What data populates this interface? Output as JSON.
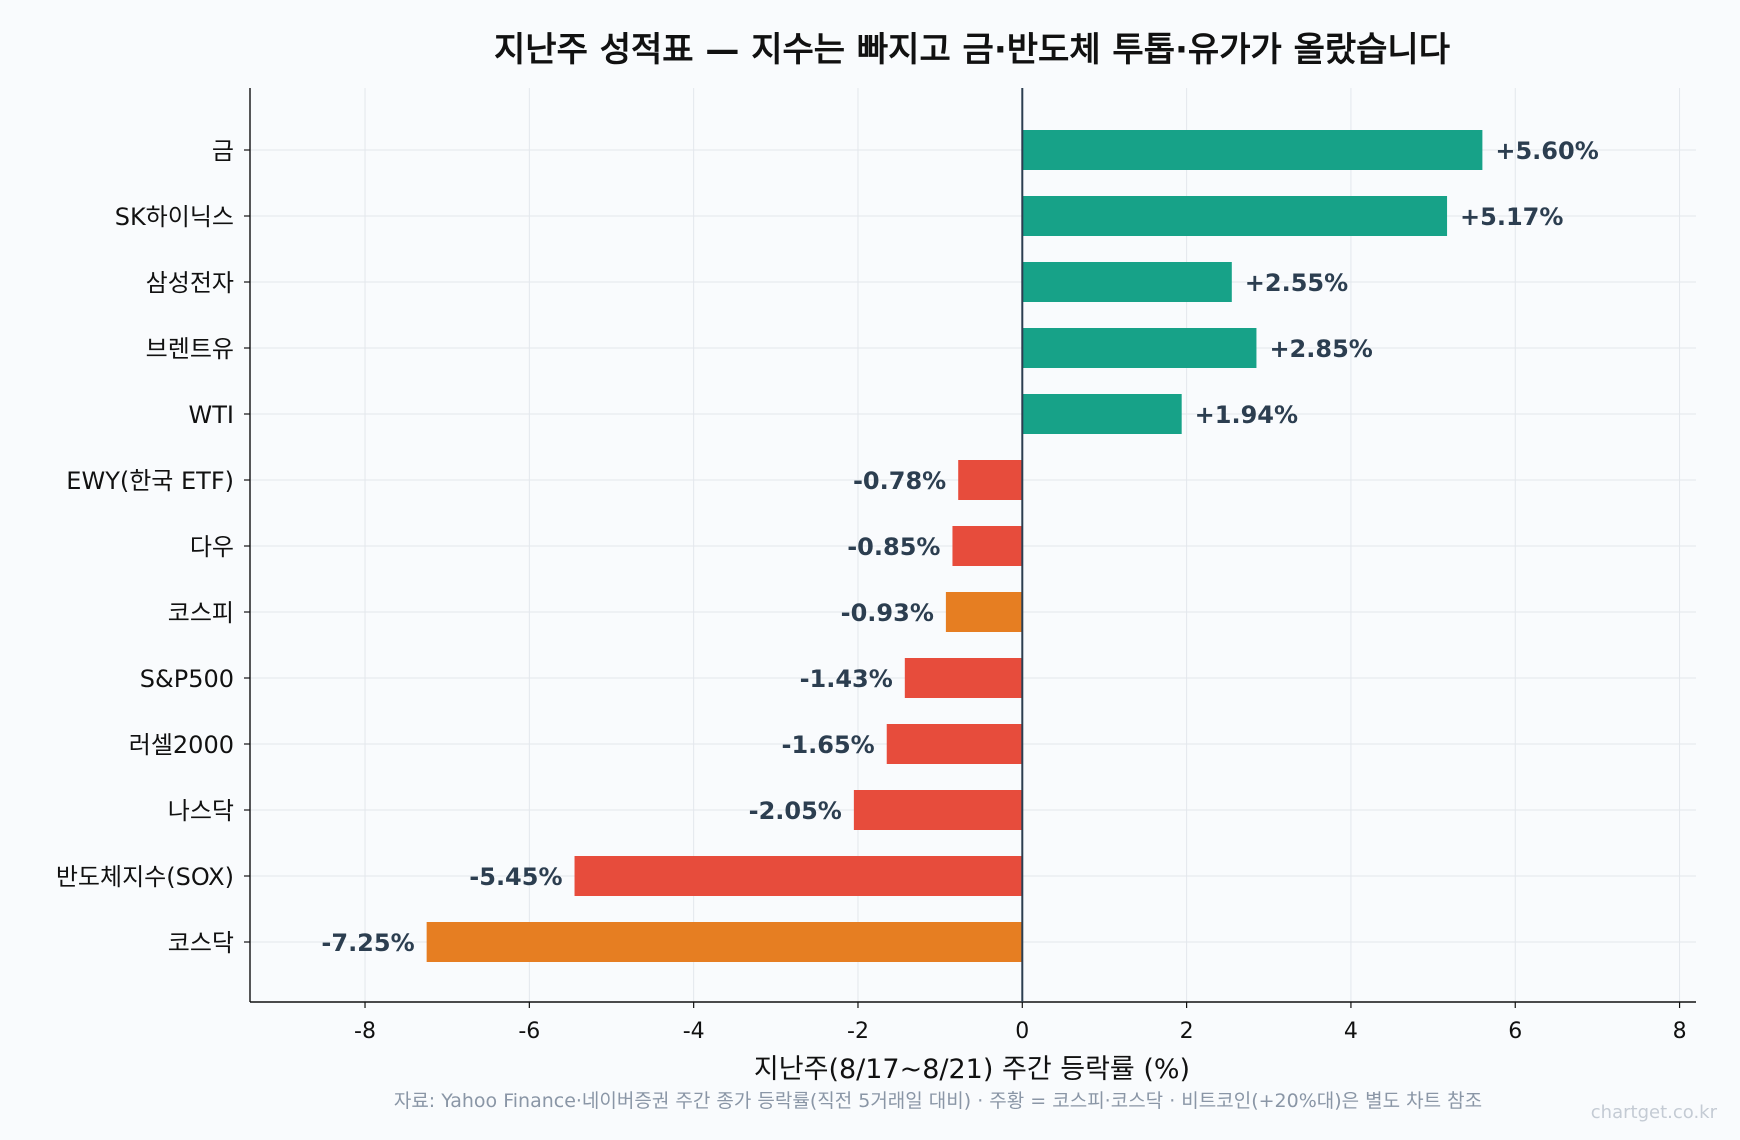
{
  "chart_data": {
    "type": "bar",
    "orientation": "horizontal",
    "title": "지난주 성적표 — 지수는 빠지고 금·반도체 투톱·유가가 올랐습니다",
    "xlabel": "지난주(8/17~8/21) 주간 등락률 (%)",
    "ylabel": "",
    "xlim": [
      -9.4,
      8.2
    ],
    "xticks": [
      -8,
      -6,
      -4,
      -2,
      0,
      2,
      4,
      6,
      8
    ],
    "grid": true,
    "categories": [
      "금",
      "SK하이닉스",
      "삼성전자",
      "브렌트유",
      "WTI",
      "EWY(한국 ETF)",
      "다우",
      "코스피",
      "S&P500",
      "러셀2000",
      "나스닥",
      "반도체지수(SOX)",
      "코스닥"
    ],
    "values": [
      5.6,
      5.17,
      2.55,
      2.85,
      1.94,
      -0.78,
      -0.85,
      -0.93,
      -1.43,
      -1.65,
      -2.05,
      -5.45,
      -7.25
    ],
    "value_labels": [
      "+5.60%",
      "+5.17%",
      "+2.55%",
      "+2.85%",
      "+1.94%",
      "-0.78%",
      "-0.85%",
      "-0.93%",
      "-1.43%",
      "-1.65%",
      "-2.05%",
      "-5.45%",
      "-7.25%"
    ],
    "bar_colors": [
      "#17a288",
      "#17a288",
      "#17a288",
      "#17a288",
      "#17a288",
      "#e74c3c",
      "#e74c3c",
      "#e67e22",
      "#e74c3c",
      "#e74c3c",
      "#e74c3c",
      "#e74c3c",
      "#e67e22"
    ],
    "zero_line_color": "#2c3e50",
    "source": "자료: Yahoo Finance·네이버증권 주간 종가 등락률(직전 5거래일 대비) · 주황 = 코스피·코스닥 · 비트코인(+20%대)은 별도 차트 참조",
    "watermark": "chartget.co.kr"
  }
}
